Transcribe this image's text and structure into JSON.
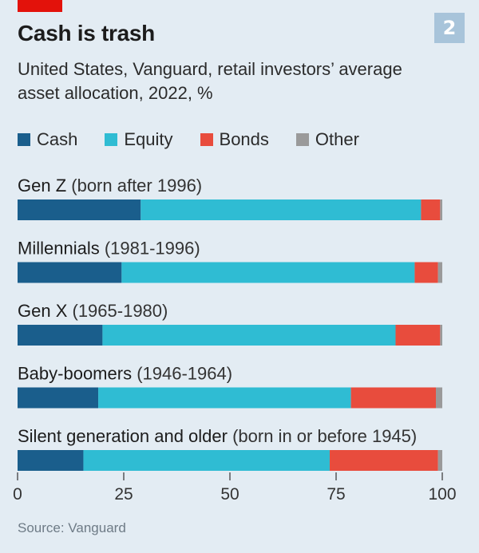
{
  "header": {
    "chart_number": "2",
    "title": "Cash is trash",
    "subtitle": "United States, Vanguard, retail investors’ average asset allocation, 2022, %"
  },
  "colors": {
    "accent_red": "#e3120b",
    "cash": "#1a5e8c",
    "equity": "#2fbcd3",
    "bonds": "#e84c3d",
    "other": "#9a9a9a"
  },
  "source": "Source: Vanguard",
  "chart_data": {
    "type": "bar",
    "orientation": "horizontal",
    "stacked": true,
    "title": "Cash is trash",
    "subtitle": "United States, Vanguard, retail investors’ average asset allocation, 2022, %",
    "xlim": [
      0,
      100
    ],
    "x_ticks": [
      0,
      25,
      50,
      75,
      100
    ],
    "legend_position": "top-left",
    "grid": false,
    "categories": [
      {
        "name": "Gen Z",
        "note": "(born after 1996)"
      },
      {
        "name": "Millennials",
        "note": "(1981-1996)"
      },
      {
        "name": "Gen X",
        "note": "(1965-1980)"
      },
      {
        "name": "Baby-boomers",
        "note": "(1946-1964)"
      },
      {
        "name": "Silent generation and older",
        "note": "(born in or before 1945)"
      }
    ],
    "series": [
      {
        "name": "Cash",
        "color": "#1a5e8c",
        "values": [
          29,
          24.5,
          20,
          19,
          15.5
        ]
      },
      {
        "name": "Equity",
        "color": "#2fbcd3",
        "values": [
          66,
          69,
          69,
          59.5,
          58
        ]
      },
      {
        "name": "Bonds",
        "color": "#e84c3d",
        "values": [
          4.5,
          5.5,
          10.5,
          20,
          25.5
        ]
      },
      {
        "name": "Other",
        "color": "#9a9a9a",
        "values": [
          0.5,
          1,
          0.5,
          1.5,
          1
        ]
      }
    ]
  }
}
